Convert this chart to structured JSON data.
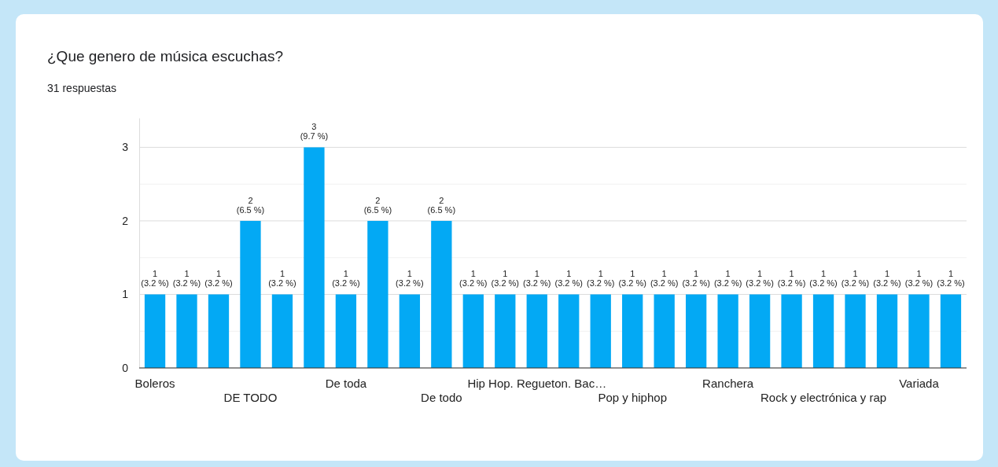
{
  "chart_data": {
    "type": "bar",
    "title": "¿Que genero de música escuchas?",
    "subtitle": "31 respuestas",
    "categories": [
      "Boleros",
      null,
      null,
      "DE TODO",
      null,
      null,
      "De toda",
      null,
      null,
      "De todo",
      null,
      null,
      "Hip Hop. Regueton. Bac…",
      null,
      null,
      "Pop y hiphop",
      null,
      null,
      "Ranchera",
      null,
      null,
      "Rock y electrónica y rap",
      null,
      null,
      "Variada",
      null
    ],
    "values": [
      1,
      1,
      1,
      2,
      1,
      3,
      1,
      2,
      1,
      2,
      1,
      1,
      1,
      1,
      1,
      1,
      1,
      1,
      1,
      1,
      1,
      1,
      1,
      1,
      1,
      1
    ],
    "value_labels": [
      "1 (3.2 %)",
      "1 (3.2 %)",
      "1 (3.2 %)",
      "2 (6.5 %)",
      "1 (3.2 %)",
      "3 (9.7 %)",
      "1 (3.2 %)",
      "2 (6.5 %)",
      "1 (3.2 %)",
      "2 (6.5 %)",
      "1 (3.2 %)",
      "1 (3.2 %)",
      "1 (3.2 %)",
      "1 (3.2 %)",
      "1 (3.2 %)",
      "1 (3.2 %)",
      "1 (3.2 %)",
      "1 (3.2 %)",
      "1 (3.2 %)",
      "1 (3.2 %)",
      "1 (3.2 %)",
      "1 (3.2 %)",
      "1 (3.2 %)",
      "1 (3.2 %)",
      "1 (3.2 %)",
      "1 (3.2 %)"
    ],
    "color": "#03a9f4",
    "ylim": [
      0,
      3.4
    ],
    "yticks": [
      0,
      {
        "value": 0.5,
        "label": null
      },
      1,
      {
        "value": 1.5,
        "label": null
      },
      2,
      {
        "value": 2.5,
        "label": null
      },
      3
    ],
    "grid": true
  }
}
